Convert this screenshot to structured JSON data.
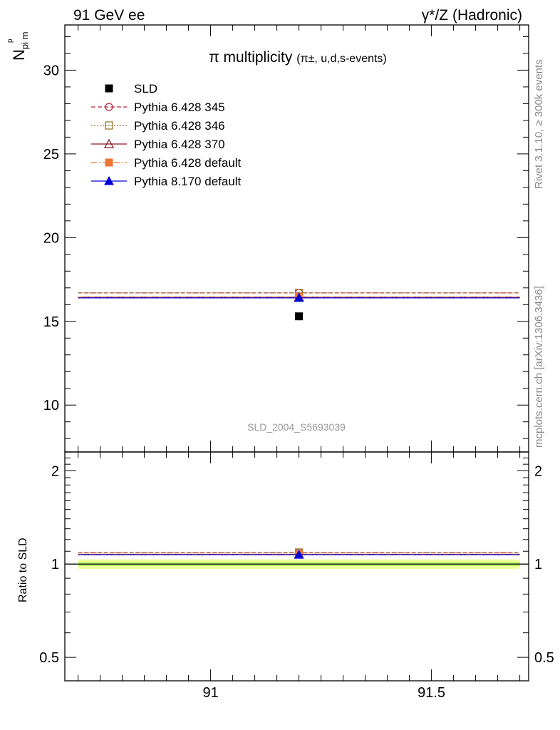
{
  "header": {
    "left_label": "91 GeV ee",
    "right_label": "γ*/Z (Hadronic)"
  },
  "side_text": {
    "rivet": "Rivet 3.1.10, ≥ 300k events",
    "mcplots": "mcplots.cern.ch [arXiv:1306.3436]"
  },
  "watermark": "SLD_2004_S5693039",
  "chart_data": [
    {
      "type": "scatter",
      "title": "π multiplicity",
      "title_suffix": "(π±, u,d,s-events)",
      "ylabel": "N",
      "ylabel_sub": "pi m",
      "ylabel_sup": "p",
      "xlim": [
        90.67,
        91.72
      ],
      "ylim": [
        7.2,
        32.7
      ],
      "x_ticks": [
        91,
        91.5
      ],
      "y_ticks": [
        10,
        15,
        20,
        25,
        30
      ],
      "legend_position": "top-left",
      "series": [
        {
          "name": "SLD",
          "type": "points",
          "marker": "square",
          "color": "#000000",
          "x": 91.2,
          "y": 15.3
        },
        {
          "name": "Pythia 6.428 345",
          "marker": "open-circle",
          "line": "dashed",
          "color": "#bb2a3c",
          "x_range": [
            90.7,
            91.7
          ],
          "x": 91.2,
          "y": 16.7
        },
        {
          "name": "Pythia 6.428 346",
          "marker": "open-square",
          "line": "dotted",
          "color": "#9a7a30",
          "x_range": [
            90.7,
            91.7
          ],
          "x": 91.2,
          "y": 16.7
        },
        {
          "name": "Pythia 6.428 370",
          "marker": "open-triangle",
          "line": "solid",
          "color": "#8b1a22",
          "x_range": [
            90.7,
            91.7
          ],
          "x": 91.2,
          "y": 16.45
        },
        {
          "name": "Pythia 6.428 default",
          "marker": "filled-square",
          "line": "dashdot",
          "color": "#ee7733",
          "x_range": [
            90.7,
            91.7
          ],
          "x": 91.2,
          "y": 16.45
        },
        {
          "name": "Pythia 8.170 default",
          "marker": "filled-triangle",
          "line": "solid",
          "color": "#0000dd",
          "x_range": [
            90.7,
            91.7
          ],
          "x": 91.2,
          "y": 16.4
        }
      ]
    },
    {
      "type": "scatter",
      "ylabel": "Ratio to SLD",
      "xlim": [
        90.67,
        91.72
      ],
      "ylim": [
        0.42,
        2.3
      ],
      "log_y": true,
      "x_ticks": [
        91,
        91.5
      ],
      "x_tick_labels": [
        "91",
        "91.5"
      ],
      "y_ticks": [
        0.5,
        1,
        2
      ],
      "y_tick_labels": [
        "0.5",
        "1",
        "2"
      ],
      "ref_band": {
        "center": 1.0,
        "inner": [
          0.985,
          1.015
        ],
        "outer": [
          0.965,
          1.035
        ]
      },
      "series": [
        {
          "name": "Pythia 6.428 345",
          "x": 91.2,
          "y": 1.09,
          "color": "#bb2a3c"
        },
        {
          "name": "Pythia 6.428 346",
          "x": 91.2,
          "y": 1.09,
          "color": "#9a7a30"
        },
        {
          "name": "Pythia 6.428 370",
          "x": 91.2,
          "y": 1.075,
          "color": "#8b1a22"
        },
        {
          "name": "Pythia 6.428 default",
          "x": 91.2,
          "y": 1.075,
          "color": "#ee7733"
        },
        {
          "name": "Pythia 8.170 default",
          "x": 91.2,
          "y": 1.072,
          "color": "#0000dd"
        }
      ]
    }
  ]
}
